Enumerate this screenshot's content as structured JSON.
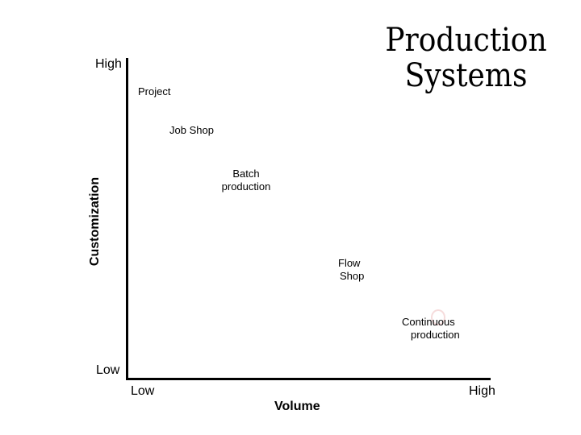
{
  "title": {
    "line1": "Production",
    "line2": "Systems"
  },
  "y_axis": {
    "title": "Customization",
    "high_label": "High",
    "low_label": "Low"
  },
  "x_axis": {
    "title": "Volume",
    "low_label": "Low",
    "high_label": "High"
  },
  "systems": [
    {
      "line1": "Project",
      "line2": ""
    },
    {
      "line1": "Job Shop",
      "line2": ""
    },
    {
      "line1": "Batch",
      "line2": "production"
    },
    {
      "line1": "Flow",
      "line2": "Shop"
    },
    {
      "line1": "Continuous",
      "line2": "production"
    }
  ],
  "colors": {
    "axis": "#000000",
    "text": "#000000",
    "background": "#ffffff",
    "faint_marker": "#f6dcdc"
  }
}
